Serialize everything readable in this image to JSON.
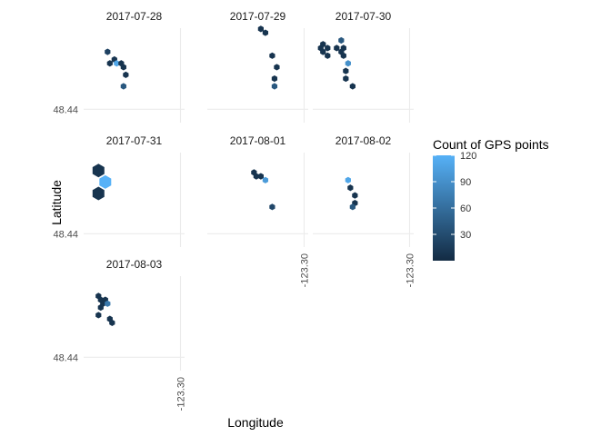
{
  "chart_data": {
    "type": "hexbin-faceted",
    "xlabel": "Longitude",
    "ylabel": "Latitude",
    "x_tick": "-123.30",
    "y_tick": "48.44",
    "legend": {
      "title": "Count of GPS points",
      "min": 0,
      "max": 120,
      "ticks": [
        "30",
        "60",
        "90",
        "120"
      ],
      "low_color": "#132B43",
      "high_color": "#56B1F7"
    },
    "facets": [
      {
        "label": "2017-07-28",
        "bins": [
          {
            "lon": -123.332,
            "lat": 48.455,
            "count": 20
          },
          {
            "lon": -123.329,
            "lat": 48.453,
            "count": 10
          },
          {
            "lon": -123.331,
            "lat": 48.452,
            "count": 8
          },
          {
            "lon": -123.328,
            "lat": 48.452,
            "count": 110
          },
          {
            "lon": -123.326,
            "lat": 48.452,
            "count": 8
          },
          {
            "lon": -123.325,
            "lat": 48.451,
            "count": 8
          },
          {
            "lon": -123.324,
            "lat": 48.449,
            "count": 8
          },
          {
            "lon": -123.325,
            "lat": 48.446,
            "count": 40
          }
        ]
      },
      {
        "label": "2017-07-29",
        "bins": [
          {
            "lon": -123.319,
            "lat": 48.461,
            "count": 8
          },
          {
            "lon": -123.317,
            "lat": 48.46,
            "count": 8
          },
          {
            "lon": -123.314,
            "lat": 48.454,
            "count": 8
          },
          {
            "lon": -123.312,
            "lat": 48.451,
            "count": 8
          },
          {
            "lon": -123.313,
            "lat": 48.448,
            "count": 8
          },
          {
            "lon": -123.313,
            "lat": 48.446,
            "count": 40
          }
        ]
      },
      {
        "label": "2017-07-30",
        "bins": [
          {
            "lon": -123.339,
            "lat": 48.456,
            "count": 8
          },
          {
            "lon": -123.338,
            "lat": 48.457,
            "count": 8
          },
          {
            "lon": -123.336,
            "lat": 48.456,
            "count": 8
          },
          {
            "lon": -123.338,
            "lat": 48.455,
            "count": 8
          },
          {
            "lon": -123.336,
            "lat": 48.454,
            "count": 8
          },
          {
            "lon": -123.332,
            "lat": 48.456,
            "count": 8
          },
          {
            "lon": -123.329,
            "lat": 48.456,
            "count": 8
          },
          {
            "lon": -123.33,
            "lat": 48.458,
            "count": 40
          },
          {
            "lon": -123.33,
            "lat": 48.455,
            "count": 8
          },
          {
            "lon": -123.329,
            "lat": 48.454,
            "count": 8
          },
          {
            "lon": -123.327,
            "lat": 48.452,
            "count": 90
          },
          {
            "lon": -123.328,
            "lat": 48.45,
            "count": 8
          },
          {
            "lon": -123.328,
            "lat": 48.448,
            "count": 8
          },
          {
            "lon": -123.325,
            "lat": 48.446,
            "count": 8
          }
        ]
      },
      {
        "label": "2017-07-31",
        "bins": [
          {
            "lon": -123.336,
            "lat": 48.4565,
            "count": 8
          },
          {
            "lon": -123.333,
            "lat": 48.4535,
            "count": 120
          },
          {
            "lon": -123.336,
            "lat": 48.4505,
            "count": 8
          }
        ]
      },
      {
        "label": "2017-08-01",
        "bins": [
          {
            "lon": -123.322,
            "lat": 48.456,
            "count": 8
          },
          {
            "lon": -123.321,
            "lat": 48.455,
            "count": 8
          },
          {
            "lon": -123.319,
            "lat": 48.455,
            "count": 8
          },
          {
            "lon": -123.317,
            "lat": 48.454,
            "count": 100
          },
          {
            "lon": -123.314,
            "lat": 48.447,
            "count": 25
          }
        ]
      },
      {
        "label": "2017-08-02",
        "bins": [
          {
            "lon": -123.327,
            "lat": 48.454,
            "count": 110
          },
          {
            "lon": -123.326,
            "lat": 48.452,
            "count": 8
          },
          {
            "lon": -123.324,
            "lat": 48.45,
            "count": 8
          },
          {
            "lon": -123.324,
            "lat": 48.448,
            "count": 8
          },
          {
            "lon": -123.325,
            "lat": 48.447,
            "count": 40
          }
        ]
      },
      {
        "label": "2017-08-03",
        "bins": [
          {
            "lon": -123.336,
            "lat": 48.456,
            "count": 8
          },
          {
            "lon": -123.335,
            "lat": 48.455,
            "count": 8
          },
          {
            "lon": -123.333,
            "lat": 48.455,
            "count": 8
          },
          {
            "lon": -123.334,
            "lat": 48.454,
            "count": 8
          },
          {
            "lon": -123.332,
            "lat": 48.454,
            "count": 70
          },
          {
            "lon": -123.335,
            "lat": 48.453,
            "count": 8
          },
          {
            "lon": -123.336,
            "lat": 48.451,
            "count": 8
          },
          {
            "lon": -123.331,
            "lat": 48.45,
            "count": 8
          },
          {
            "lon": -123.33,
            "lat": 48.449,
            "count": 8
          }
        ]
      }
    ]
  }
}
